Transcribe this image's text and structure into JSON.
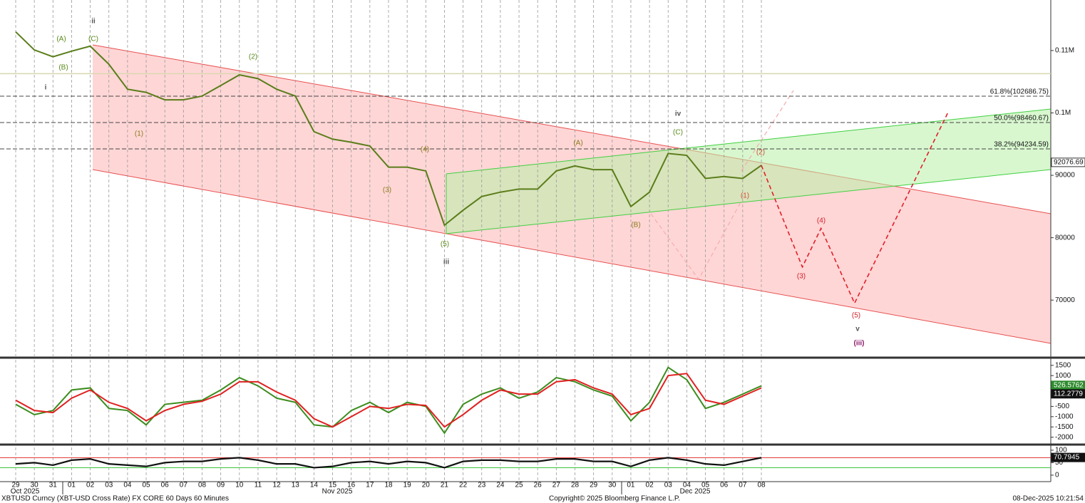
{
  "chart_data": [
    {
      "type": "line",
      "categories": [
        "29",
        "30",
        "31",
        "01",
        "02",
        "03",
        "04",
        "05",
        "06",
        "07",
        "08",
        "09",
        "10",
        "11",
        "12",
        "13",
        "14",
        "15",
        "16",
        "17",
        "18",
        "19",
        "20",
        "21",
        "22",
        "23",
        "24",
        "25",
        "26",
        "27",
        "28",
        "29",
        "30",
        "01",
        "02",
        "03",
        "04",
        "05",
        "06",
        "07",
        "08"
      ],
      "x_group_labels": [
        "Oct 2025",
        "Nov 2025",
        "Dec 2025"
      ],
      "values": [
        113000,
        110100,
        109000,
        109900,
        110700,
        107800,
        103800,
        103300,
        102100,
        102100,
        102700,
        104400,
        106100,
        105500,
        103800,
        102700,
        97000,
        95800,
        95300,
        94700,
        91300,
        91300,
        90700,
        82000,
        84400,
        86600,
        87300,
        87800,
        87800,
        90700,
        91500,
        90900,
        90900,
        85000,
        87300,
        93500,
        93200,
        89500,
        89800,
        89500,
        91600
      ],
      "color": "#5a7d1a",
      "ylim": [
        61000,
        118100
      ],
      "yticks": [
        {
          "value": 110000,
          "label": "0.11M"
        },
        {
          "value": 100000,
          "label": "0.1M"
        },
        90000,
        80000,
        70000
      ],
      "grid": true,
      "last_value": 92076.69,
      "reference_level": 106300,
      "fib_levels": [
        {
          "value": 102686.75,
          "label": "61.8%(102686.75)"
        },
        {
          "value": 98460.67,
          "label": "50.0%(98460.67)"
        },
        {
          "value": 94234.59,
          "label": "38.2%(94234.59)"
        }
      ],
      "projection": {
        "x": [
          40,
          42.2,
          43.2,
          45,
          50
        ],
        "values": [
          91600,
          75300,
          81500,
          69500,
          100000
        ],
        "color": "#e0202a"
      },
      "annotations": [
        {
          "text": "ii",
          "color": "#555555"
        },
        {
          "text": "(A)",
          "color": "#5a8a1a"
        },
        {
          "text": "(C)",
          "color": "#5a8a1a"
        },
        {
          "text": "(B)",
          "color": "#5a8a1a"
        },
        {
          "text": "i",
          "color": "#555555"
        },
        {
          "text": "(2)",
          "color": "#5a8a1a"
        },
        {
          "text": "(1)",
          "color": "#8a7a1a"
        },
        {
          "text": "(3)",
          "color": "#8a7a1a"
        },
        {
          "text": "(4)",
          "color": "#8a7a1a"
        },
        {
          "text": "(5)",
          "color": "#5a8a1a"
        },
        {
          "text": "iii",
          "color": "#555555"
        },
        {
          "text": "(A)",
          "color": "#8a7a1a"
        },
        {
          "text": "iv",
          "color": "#555555"
        },
        {
          "text": "(C)",
          "color": "#5a8a1a"
        },
        {
          "text": "(B)",
          "color": "#8a7a1a"
        },
        {
          "text": "(2)",
          "color": "#d2503a"
        },
        {
          "text": "(1)",
          "color": "#d2503a"
        },
        {
          "text": "(4)",
          "color": "#d2202a"
        },
        {
          "text": "(3)",
          "color": "#d2202a"
        },
        {
          "text": "(5)",
          "color": "#d2202a"
        },
        {
          "text": "v",
          "color": "#555555"
        },
        {
          "text": "(iii)",
          "color": "#8b1a6b"
        }
      ]
    },
    {
      "type": "line",
      "series": [
        {
          "color": "#3c8c1e",
          "values": [
            -400,
            -900,
            -700,
            300,
            400,
            -600,
            -700,
            -1400,
            -400,
            -300,
            -200,
            300,
            900,
            500,
            -100,
            -300,
            -1400,
            -1500,
            -700,
            -300,
            -800,
            -300,
            -500,
            -1800,
            -400,
            100,
            400,
            -100,
            200,
            900,
            700,
            300,
            0,
            -1200,
            -300,
            1400,
            800,
            -600,
            -300,
            100,
            500
          ]
        },
        {
          "color": "#e02020",
          "values": [
            -200,
            -700,
            -800,
            -100,
            300,
            -300,
            -600,
            -1200,
            -700,
            -400,
            -250,
            100,
            700,
            700,
            200,
            -200,
            -1100,
            -1500,
            -1000,
            -500,
            -600,
            -400,
            -450,
            -1500,
            -900,
            -200,
            300,
            100,
            100,
            700,
            800,
            400,
            100,
            -900,
            -600,
            1000,
            1100,
            -200,
            -400,
            0,
            400
          ]
        }
      ],
      "ylim": [
        -2290,
        1770
      ],
      "yticks": [
        1500,
        1000,
        -500,
        -1000,
        -1500,
        -2000
      ],
      "last_values": [
        {
          "value": 526.5762,
          "color": "#2e8b2e"
        },
        {
          "value": 112.2779,
          "color": "#111111"
        }
      ]
    },
    {
      "type": "line",
      "values": [
        45,
        50,
        40,
        60,
        65,
        45,
        40,
        35,
        50,
        55,
        55,
        65,
        70,
        60,
        45,
        45,
        30,
        35,
        50,
        55,
        45,
        55,
        50,
        30,
        55,
        60,
        60,
        55,
        55,
        65,
        65,
        55,
        55,
        35,
        60,
        70,
        60,
        45,
        40,
        55,
        70
      ],
      "color": "#111111",
      "ylim": [
        -23,
        111
      ],
      "yticks": [
        100,
        50,
        0
      ],
      "bands": [
        {
          "value": 70,
          "color": "#e03030"
        },
        {
          "value": 30,
          "color": "#30c030"
        }
      ],
      "last_value": 70.7945
    }
  ],
  "footer": {
    "security": "XBTUSD Curncy (XBT-USD Cross Rate) FX CORE 60 Days 60 Minutes",
    "copyright": "Copyright© 2025 Bloomberg Finance L.P.",
    "timestamp": "08-Dec-2025 10:21:54"
  }
}
